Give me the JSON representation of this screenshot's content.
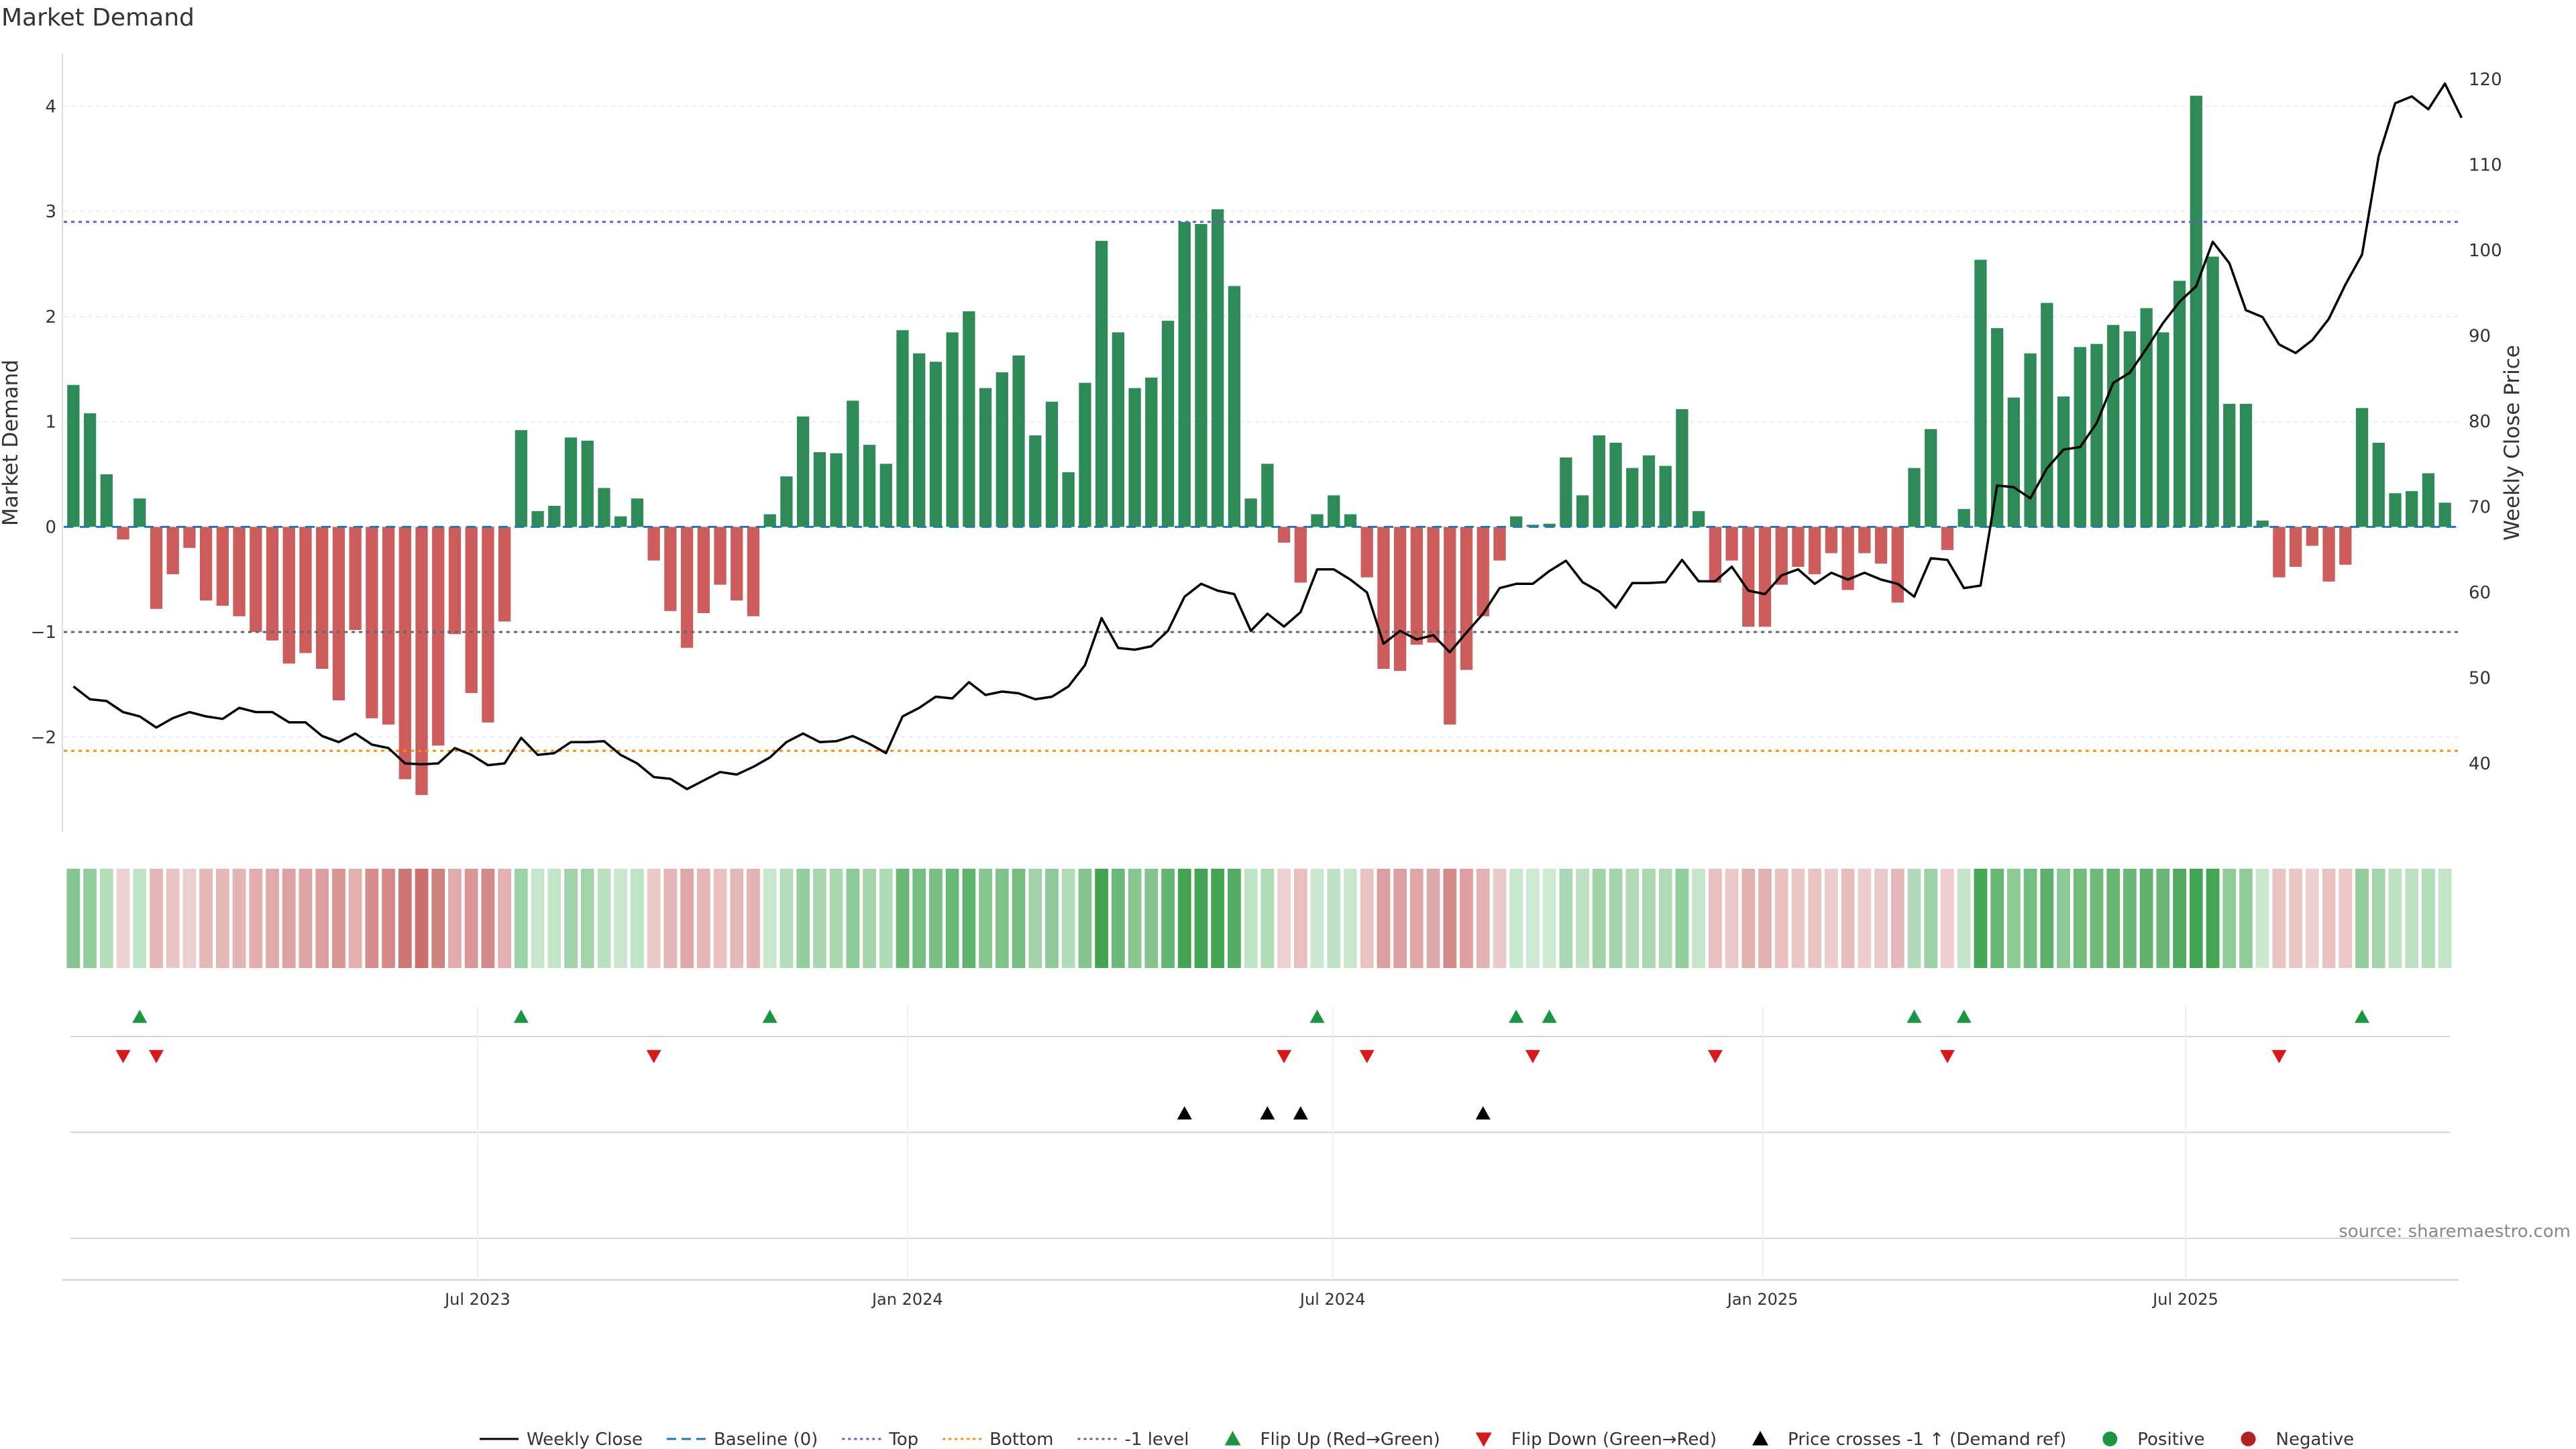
{
  "chart_data": {
    "type": "bar+line",
    "title": "Market Demand",
    "ylabel_left": "Market Demand",
    "ylabel_right": "Weekly Close Price",
    "ylim_left": [
      -2.9,
      4.5
    ],
    "ylim_right": [
      32,
      123
    ],
    "yticks_left": [
      4,
      3,
      2,
      1,
      0,
      -1,
      -2
    ],
    "yticks_left_labels": [
      "4",
      "3",
      "2",
      "1",
      "0",
      "−1",
      "−2"
    ],
    "yticks_right": [
      120,
      110,
      100,
      90,
      80,
      70,
      60,
      50,
      40
    ],
    "yticks_right_labels": [
      "120",
      "110",
      "100",
      "90",
      "80",
      "70",
      "60",
      "50",
      "40"
    ],
    "x_start": "2023-01-09",
    "x_end": "2025-10-20",
    "xticks": [
      {
        "date": "2023-07-01",
        "label": "Jul 2023"
      },
      {
        "date": "2024-01-01",
        "label": "Jan 2024"
      },
      {
        "date": "2024-07-01",
        "label": "Jul 2024"
      },
      {
        "date": "2025-01-01",
        "label": "Jan 2025"
      },
      {
        "date": "2025-07-01",
        "label": "Jul 2025"
      }
    ],
    "reference_lines": {
      "top": 2.9,
      "bottom": -2.13,
      "minus_one": -1.0,
      "baseline": 0
    },
    "demand": [
      1.35,
      1.08,
      0.5,
      -0.12,
      0.27,
      -0.78,
      -0.45,
      -0.2,
      -0.7,
      -0.75,
      -0.85,
      -1.0,
      -1.08,
      -1.3,
      -1.2,
      -1.35,
      -1.65,
      -0.98,
      -1.82,
      -1.88,
      -2.4,
      -2.55,
      -2.08,
      -1.02,
      -1.58,
      -1.86,
      -0.9,
      0.92,
      0.15,
      0.2,
      0.85,
      0.82,
      0.37,
      0.1,
      0.27,
      -0.32,
      -0.8,
      -1.15,
      -0.82,
      -0.55,
      -0.7,
      -0.85,
      0.12,
      0.48,
      1.05,
      0.71,
      0.7,
      1.2,
      0.78,
      0.6,
      1.87,
      1.65,
      1.57,
      1.85,
      2.05,
      1.32,
      1.47,
      1.63,
      0.87,
      1.19,
      0.52,
      1.37,
      2.72,
      1.85,
      1.32,
      1.42,
      1.96,
      2.9,
      2.88,
      3.02,
      2.29,
      0.27,
      0.6,
      -0.15,
      -0.53,
      0.12,
      0.3,
      0.12,
      -0.48,
      -1.35,
      -1.37,
      -1.12,
      -1.1,
      -1.88,
      -1.36,
      -0.85,
      -0.32,
      0.1,
      0.02,
      0.03,
      0.66,
      0.3,
      0.87,
      0.8,
      0.56,
      0.68,
      0.58,
      1.12,
      0.15,
      -0.53,
      -0.32,
      -0.95,
      -0.95,
      -0.55,
      -0.38,
      -0.45,
      -0.25,
      -0.6,
      -0.25,
      -0.35,
      -0.72,
      0.56,
      0.93,
      -0.22,
      0.17,
      2.54,
      1.89,
      1.23,
      1.65,
      2.13,
      1.24,
      1.71,
      1.74,
      1.92,
      1.86,
      2.08,
      1.85,
      2.34,
      4.1,
      2.57,
      1.17,
      1.17,
      0.06,
      -0.48,
      -0.38,
      -0.18,
      -0.52,
      -0.36,
      1.13,
      0.8,
      0.32,
      0.34,
      0.51,
      0.23
    ],
    "weekly_close": [
      49,
      47.5,
      47.3,
      46,
      45.5,
      44.2,
      45.3,
      46,
      45.5,
      45.2,
      46.5,
      46,
      46,
      44.8,
      44.8,
      43.2,
      42.5,
      43.5,
      42.2,
      41.8,
      40,
      39.9,
      40,
      41.8,
      41,
      39.8,
      40,
      43,
      41,
      41.2,
      42.5,
      42.5,
      42.6,
      41,
      40,
      38.4,
      38.2,
      37,
      38,
      39,
      38.7,
      39.6,
      40.7,
      42.5,
      43.5,
      42.5,
      42.6,
      43.2,
      42.3,
      41.2,
      45.5,
      46.5,
      47.8,
      47.6,
      49.5,
      48,
      48.4,
      48.2,
      47.5,
      47.8,
      49,
      51.5,
      57,
      53.5,
      53.3,
      53.7,
      55.5,
      59.5,
      61,
      60.2,
      59.8,
      55.5,
      57.5,
      56,
      57.7,
      62.7,
      62.7,
      61.5,
      60,
      54,
      55.5,
      54.5,
      55,
      53,
      55.3,
      57.5,
      60.5,
      61,
      61,
      62.5,
      63.7,
      61.2,
      60.1,
      58.2,
      61.1,
      61.1,
      61.2,
      63.8,
      61.3,
      61.3,
      63,
      60.2,
      59.8,
      62,
      62.7,
      61,
      62.3,
      61.5,
      62.3,
      61.5,
      61,
      59.5,
      64,
      63.8,
      60.5,
      60.8,
      72.5,
      72.3,
      71,
      74.5,
      76.7,
      77,
      79.8,
      84.5,
      85.7,
      88.5,
      91.5,
      94,
      95.8,
      101,
      98.5,
      93,
      92.2,
      89,
      88,
      89.5,
      92,
      96,
      99.5,
      111,
      117.2,
      118,
      116.5,
      119.5,
      115.5
    ],
    "flip_up_idx": [
      4,
      27,
      42,
      75,
      87,
      89,
      111,
      114,
      138
    ],
    "flip_down_idx": [
      3,
      5,
      35,
      73,
      78,
      88,
      99,
      113,
      133
    ],
    "price_cross_idx": [
      67,
      72,
      74,
      85
    ],
    "colors": {
      "positive_bar": "#2e8b57",
      "negative_bar": "#cd5c5c",
      "close_line": "#000000",
      "baseline": "#1f77b4",
      "top": "#6a5acd",
      "bottom": "#ff8c00",
      "minus_one": "#666666",
      "flip_up": "#1a9641",
      "flip_down": "#d7191c",
      "price_cross": "#000000",
      "positive_dot": "#1a9641",
      "negative_dot": "#b22222"
    },
    "legend": [
      {
        "label": "Weekly Close",
        "kind": "line-solid",
        "color": "#000000"
      },
      {
        "label": "Baseline (0)",
        "kind": "line-dash",
        "color": "#1f77b4"
      },
      {
        "label": "Top",
        "kind": "line-dot",
        "color": "#6a5acd"
      },
      {
        "label": "Bottom",
        "kind": "line-dot",
        "color": "#ff8c00"
      },
      {
        "label": "-1 level",
        "kind": "line-dot",
        "color": "#666666"
      },
      {
        "label": "Flip Up (Red→Green)",
        "kind": "tri-up",
        "color": "#1a9641"
      },
      {
        "label": "Flip Down (Green→Red)",
        "kind": "tri-down",
        "color": "#d7191c"
      },
      {
        "label": "Price crosses -1 ↑ (Demand ref)",
        "kind": "tri-up",
        "color": "#000000"
      },
      {
        "label": "Positive",
        "kind": "dot",
        "color": "#1a9641"
      },
      {
        "label": "Negative",
        "kind": "dot",
        "color": "#b22222"
      }
    ],
    "legend_position": "bottom-center",
    "source": "source: sharemaestro.com"
  }
}
